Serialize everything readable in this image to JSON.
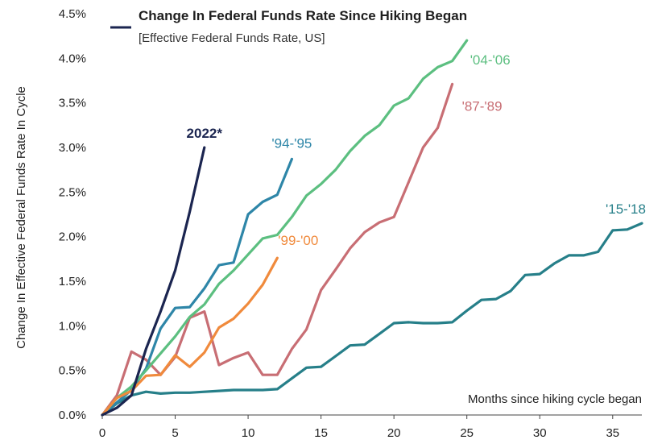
{
  "chart_data": {
    "type": "line",
    "title": "Change In Federal Funds Rate Since Hiking Began",
    "subtitle": "[Effective Federal Funds Rate, US]",
    "xlabel": "Months since hiking cycle began",
    "ylabel": "Change In Effective Federal Funds Rate In Cycle",
    "xlim": [
      0,
      37
    ],
    "ylim": [
      0,
      4.5
    ],
    "x_ticks": [
      "0",
      "5",
      "10",
      "15",
      "20",
      "25",
      "30",
      "35"
    ],
    "y_ticks": [
      "0.0%",
      "0.5%",
      "1.0%",
      "1.5%",
      "2.0%",
      "2.5%",
      "3.0%",
      "3.5%",
      "4.0%",
      "4.5%"
    ],
    "grid": false,
    "legend_position": "top-left",
    "series": [
      {
        "name": "2022*",
        "color": "#1b2550",
        "x": [
          0,
          1,
          2,
          3,
          4,
          5,
          6,
          7
        ],
        "y": [
          0,
          0.08,
          0.22,
          0.74,
          1.16,
          1.62,
          2.28,
          3.0
        ]
      },
      {
        "name": "'94-'95",
        "color": "#2e86a8",
        "x": [
          0,
          1,
          2,
          3,
          4,
          5,
          6,
          7,
          8,
          9,
          10,
          11,
          12,
          13
        ],
        "y": [
          0,
          0.14,
          0.28,
          0.52,
          0.97,
          1.2,
          1.21,
          1.42,
          1.68,
          1.71,
          2.25,
          2.39,
          2.47,
          2.87
        ]
      },
      {
        "name": "'04-'06",
        "color": "#5cbf80",
        "x": [
          0,
          1,
          2,
          3,
          4,
          5,
          6,
          7,
          8,
          9,
          10,
          11,
          12,
          13,
          14,
          15,
          16,
          17,
          18,
          19,
          20,
          21,
          22,
          23,
          24,
          25
        ],
        "y": [
          0,
          0.19,
          0.32,
          0.5,
          0.69,
          0.88,
          1.1,
          1.24,
          1.47,
          1.62,
          1.8,
          1.98,
          2.02,
          2.22,
          2.46,
          2.59,
          2.75,
          2.96,
          3.13,
          3.25,
          3.47,
          3.55,
          3.77,
          3.9,
          3.97,
          4.2
        ]
      },
      {
        "name": "'87-'89",
        "color": "#c86e74",
        "x": [
          0,
          1,
          2,
          3,
          4,
          5,
          6,
          7,
          8,
          9,
          10,
          11,
          12,
          13,
          14,
          15,
          16,
          17,
          18,
          19,
          20,
          21,
          22,
          23,
          24
        ],
        "y": [
          0,
          0.22,
          0.71,
          0.62,
          0.45,
          0.65,
          1.09,
          1.16,
          0.56,
          0.64,
          0.7,
          0.45,
          0.45,
          0.74,
          0.96,
          1.4,
          1.63,
          1.87,
          2.05,
          2.16,
          2.22,
          2.61,
          3.0,
          3.22,
          3.71
        ]
      },
      {
        "name": "'99-'00",
        "color": "#f08a3c",
        "x": [
          0,
          1,
          2,
          3,
          4,
          5,
          6,
          7,
          8,
          9,
          10,
          11,
          12
        ],
        "y": [
          0,
          0.19,
          0.27,
          0.44,
          0.45,
          0.67,
          0.54,
          0.7,
          0.98,
          1.08,
          1.25,
          1.46,
          1.76
        ]
      },
      {
        "name": "'15-'18",
        "color": "#267f89",
        "x": [
          0,
          1,
          2,
          3,
          4,
          5,
          6,
          7,
          8,
          9,
          10,
          11,
          12,
          13,
          14,
          15,
          16,
          17,
          18,
          19,
          20,
          21,
          22,
          23,
          24,
          25,
          26,
          27,
          28,
          29,
          30,
          31,
          32,
          33,
          34,
          35,
          36,
          37
        ],
        "y": [
          0,
          0.13,
          0.22,
          0.26,
          0.24,
          0.25,
          0.25,
          0.26,
          0.27,
          0.28,
          0.28,
          0.28,
          0.29,
          0.41,
          0.53,
          0.54,
          0.66,
          0.78,
          0.79,
          0.91,
          1.03,
          1.04,
          1.03,
          1.03,
          1.04,
          1.17,
          1.29,
          1.3,
          1.39,
          1.57,
          1.58,
          1.7,
          1.79,
          1.79,
          1.83,
          2.07,
          2.08,
          2.15
        ]
      }
    ]
  }
}
